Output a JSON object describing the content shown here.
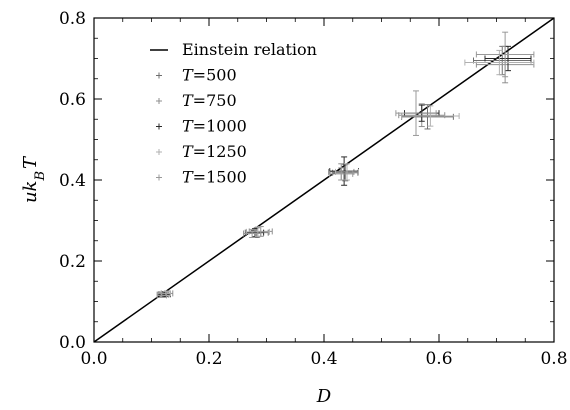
{
  "chart_data": {
    "type": "scatter",
    "xlabel": "D",
    "ylabel": "uk_BT",
    "xlim": [
      0.0,
      0.8
    ],
    "ylim": [
      0.0,
      0.8
    ],
    "x_ticks": [
      "0.0",
      "0.2",
      "0.4",
      "0.6",
      "0.8"
    ],
    "y_ticks": [
      "0.0",
      "0.2",
      "0.4",
      "0.6",
      "0.8"
    ],
    "legend_position": "top-left",
    "reference_line": {
      "name": "Einstein relation",
      "x": [
        0.0,
        0.8
      ],
      "y": [
        0.0,
        0.8
      ],
      "color": "#000000"
    },
    "series": [
      {
        "name": "T=500",
        "color": "#6f6f6f",
        "points": [
          {
            "x": 0.12,
            "y": 0.117,
            "xerr": 0.01,
            "yerr": 0.006
          },
          {
            "x": 0.283,
            "y": 0.27,
            "xerr": 0.02,
            "yerr": 0.012
          },
          {
            "x": 0.437,
            "y": 0.418,
            "xerr": 0.022,
            "yerr": 0.02
          },
          {
            "x": 0.58,
            "y": 0.556,
            "xerr": 0.045,
            "yerr": 0.03
          },
          {
            "x": 0.71,
            "y": 0.695,
            "xerr": 0.05,
            "yerr": 0.035
          }
        ]
      },
      {
        "name": "T=750",
        "color": "#8f8f8f",
        "points": [
          {
            "x": 0.127,
            "y": 0.12,
            "xerr": 0.01,
            "yerr": 0.006
          },
          {
            "x": 0.29,
            "y": 0.273,
            "xerr": 0.02,
            "yerr": 0.012
          },
          {
            "x": 0.43,
            "y": 0.42,
            "xerr": 0.022,
            "yerr": 0.02
          },
          {
            "x": 0.57,
            "y": 0.56,
            "xerr": 0.04,
            "yerr": 0.028
          },
          {
            "x": 0.715,
            "y": 0.685,
            "xerr": 0.05,
            "yerr": 0.045
          }
        ]
      },
      {
        "name": "T=1000",
        "color": "#2a2a2a",
        "points": [
          {
            "x": 0.123,
            "y": 0.118,
            "xerr": 0.01,
            "yerr": 0.006
          },
          {
            "x": 0.28,
            "y": 0.27,
            "xerr": 0.015,
            "yerr": 0.01
          },
          {
            "x": 0.435,
            "y": 0.422,
            "xerr": 0.025,
            "yerr": 0.035
          },
          {
            "x": 0.57,
            "y": 0.565,
            "xerr": 0.03,
            "yerr": 0.02
          },
          {
            "x": 0.72,
            "y": 0.7,
            "xerr": 0.04,
            "yerr": 0.03
          }
        ]
      },
      {
        "name": "T=1250",
        "color": "#b0b0b0",
        "points": [
          {
            "x": 0.125,
            "y": 0.12,
            "xerr": 0.008,
            "yerr": 0.005
          },
          {
            "x": 0.285,
            "y": 0.272,
            "xerr": 0.02,
            "yerr": 0.012
          },
          {
            "x": 0.44,
            "y": 0.42,
            "xerr": 0.02,
            "yerr": 0.02
          },
          {
            "x": 0.585,
            "y": 0.558,
            "xerr": 0.05,
            "yerr": 0.025
          },
          {
            "x": 0.705,
            "y": 0.69,
            "xerr": 0.06,
            "yerr": 0.03
          }
        ]
      },
      {
        "name": "T=1500",
        "color": "#999999",
        "points": [
          {
            "x": 0.118,
            "y": 0.115,
            "xerr": 0.008,
            "yerr": 0.005
          },
          {
            "x": 0.275,
            "y": 0.268,
            "xerr": 0.015,
            "yerr": 0.01
          },
          {
            "x": 0.43,
            "y": 0.415,
            "xerr": 0.02,
            "yerr": 0.015
          },
          {
            "x": 0.56,
            "y": 0.565,
            "xerr": 0.035,
            "yerr": 0.055
          },
          {
            "x": 0.715,
            "y": 0.71,
            "xerr": 0.05,
            "yerr": 0.055
          }
        ]
      }
    ]
  }
}
